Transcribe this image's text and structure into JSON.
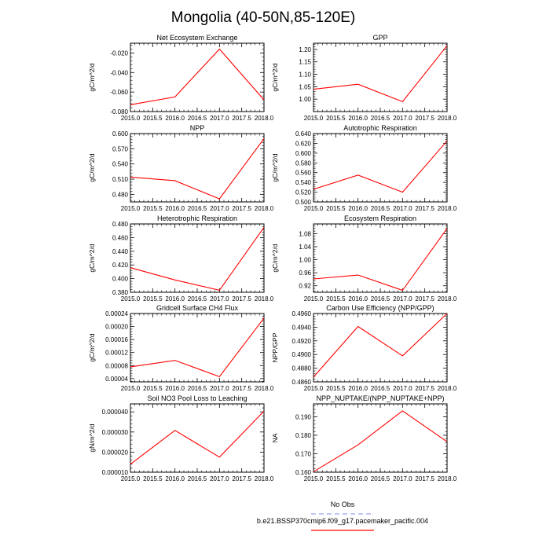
{
  "figure_title": "Mongolia (40-50N,85-120E)",
  "legend": {
    "obs_label": "No Obs",
    "obs_color": "#9aa0ee",
    "case_label": "b.e21.BSSP370cmip6.f09_g17.pacemaker_pacific.004",
    "case_color": "#ff0000"
  },
  "line_color": "#ff0000",
  "chart_data": [
    {
      "type": "line",
      "title": "Net Ecosystem Exchange",
      "xlabel": "",
      "ylabel": "gC/m^2/d",
      "x": [
        2015.0,
        2016.0,
        2017.0,
        2018.0
      ],
      "y": [
        -0.073,
        -0.065,
        -0.016,
        -0.068
      ],
      "xlim": [
        2015.0,
        2018.0
      ],
      "ylim": [
        -0.08,
        -0.01
      ],
      "xticks": [
        "2015.0",
        "2015.5",
        "2016.0",
        "2016.5",
        "2017.0",
        "2017.5",
        "2018.0"
      ],
      "yticks": [
        -0.08,
        -0.06,
        -0.04,
        -0.02
      ],
      "ytick_labels": [
        "-0.080",
        "-0.060",
        "-0.040",
        "-0.020"
      ]
    },
    {
      "type": "line",
      "title": "GPP",
      "xlabel": "",
      "ylabel": "gC/m^2/d",
      "x": [
        2015.0,
        2016.0,
        2017.0,
        2018.0
      ],
      "y": [
        1.04,
        1.06,
        0.99,
        1.215
      ],
      "xlim": [
        2015.0,
        2018.0
      ],
      "ylim": [
        0.95,
        1.225
      ],
      "xticks": [
        "2015.0",
        "2015.5",
        "2016.0",
        "2016.5",
        "2017.0",
        "2017.5",
        "2018.0"
      ],
      "yticks": [
        1.0,
        1.05,
        1.1,
        1.15,
        1.2
      ],
      "ytick_labels": [
        "1.00",
        "1.05",
        "1.10",
        "1.15",
        "1.20"
      ]
    },
    {
      "type": "line",
      "title": "NPP",
      "xlabel": "",
      "ylabel": "gC/m^2/d",
      "x": [
        2015.0,
        2016.0,
        2017.0,
        2018.0
      ],
      "y": [
        0.514,
        0.507,
        0.471,
        0.59
      ],
      "xlim": [
        2015.0,
        2018.0
      ],
      "ylim": [
        0.465,
        0.6
      ],
      "xticks": [
        "2015.0",
        "2015.5",
        "2016.0",
        "2016.5",
        "2017.0",
        "2017.5",
        "2018.0"
      ],
      "yticks": [
        0.48,
        0.51,
        0.54,
        0.57,
        0.6
      ],
      "ytick_labels": [
        "0.480",
        "0.510",
        "0.540",
        "0.570",
        "0.600"
      ]
    },
    {
      "type": "line",
      "title": "Autotrophic Respiration",
      "xlabel": "",
      "ylabel": "gC/m^2/d",
      "x": [
        2015.0,
        2016.0,
        2017.0,
        2018.0
      ],
      "y": [
        0.526,
        0.555,
        0.52,
        0.625
      ],
      "xlim": [
        2015.0,
        2018.0
      ],
      "ylim": [
        0.5,
        0.64
      ],
      "xticks": [
        "2015.0",
        "2015.5",
        "2016.0",
        "2016.5",
        "2017.0",
        "2017.5",
        "2018.0"
      ],
      "yticks": [
        0.5,
        0.52,
        0.54,
        0.56,
        0.58,
        0.6,
        0.62,
        0.64
      ],
      "ytick_labels": [
        "0.500",
        "0.520",
        "0.540",
        "0.560",
        "0.580",
        "0.600",
        "0.620",
        "0.640"
      ]
    },
    {
      "type": "line",
      "title": "Heterotrophic Respiration",
      "xlabel": "",
      "ylabel": "gC/m^2/d",
      "x": [
        2015.0,
        2016.0,
        2017.0,
        2018.0
      ],
      "y": [
        0.416,
        0.398,
        0.383,
        0.475
      ],
      "xlim": [
        2015.0,
        2018.0
      ],
      "ylim": [
        0.38,
        0.48
      ],
      "xticks": [
        "2015.0",
        "2015.5",
        "2016.0",
        "2016.5",
        "2017.0",
        "2017.5",
        "2018.0"
      ],
      "yticks": [
        0.38,
        0.4,
        0.42,
        0.44,
        0.46,
        0.48
      ],
      "ytick_labels": [
        "0.380",
        "0.400",
        "0.420",
        "0.440",
        "0.460",
        "0.480"
      ]
    },
    {
      "type": "line",
      "title": "Ecosystem Respiration",
      "xlabel": "",
      "ylabel": "gC/m^2/d",
      "x": [
        2015.0,
        2016.0,
        2017.0,
        2018.0
      ],
      "y": [
        0.941,
        0.953,
        0.906,
        1.096
      ],
      "xlim": [
        2015.0,
        2018.0
      ],
      "ylim": [
        0.9,
        1.11
      ],
      "xticks": [
        "2015.0",
        "2015.5",
        "2016.0",
        "2016.5",
        "2017.0",
        "2017.5",
        "2018.0"
      ],
      "yticks": [
        0.92,
        0.96,
        1.0,
        1.04,
        1.08
      ],
      "ytick_labels": [
        "0.92",
        "0.96",
        "1.00",
        "1.04",
        "1.08"
      ]
    },
    {
      "type": "line",
      "title": "Gridcell Surface CH4 Flux",
      "xlabel": "",
      "ylabel": "gC/m^2/d",
      "x": [
        2015.0,
        2016.0,
        2017.0,
        2018.0
      ],
      "y": [
        7.6e-05,
        9.6e-05,
        4.6e-05,
        0.000226
      ],
      "xlim": [
        2015.0,
        2018.0
      ],
      "ylim": [
        3e-05,
        0.00024
      ],
      "xticks": [
        "2015.0",
        "2015.5",
        "2016.0",
        "2016.5",
        "2017.0",
        "2017.5",
        "2018.0"
      ],
      "yticks": [
        4e-05,
        8e-05,
        0.00012,
        0.00016,
        0.0002,
        0.00024
      ],
      "ytick_labels": [
        "0.00004",
        "0.00008",
        "0.00012",
        "0.00016",
        "0.00020",
        "0.00024"
      ]
    },
    {
      "type": "line",
      "title": "Carbon Use Efficiency (NPP/GPP)",
      "xlabel": "",
      "ylabel": "NPP/GPP",
      "x": [
        2015.0,
        2016.0,
        2017.0,
        2018.0
      ],
      "y": [
        0.4867,
        0.4941,
        0.4898,
        0.496
      ],
      "xlim": [
        2015.0,
        2018.0
      ],
      "ylim": [
        0.486,
        0.496
      ],
      "xticks": [
        "2015.0",
        "2015.5",
        "2016.0",
        "2016.5",
        "2017.0",
        "2017.5",
        "2018.0"
      ],
      "yticks": [
        0.486,
        0.488,
        0.49,
        0.492,
        0.494,
        0.496
      ],
      "ytick_labels": [
        "0.4860",
        "0.4880",
        "0.4900",
        "0.4920",
        "0.4940",
        "0.4960"
      ]
    },
    {
      "type": "line",
      "title": "Soil NO3 Pool Loss to Leaching",
      "xlabel": "",
      "ylabel": "gN/m^2/d",
      "x": [
        2015.0,
        2016.0,
        2017.0,
        2018.0
      ],
      "y": [
        1.4e-05,
        3.08e-05,
        1.75e-05,
        4.04e-05
      ],
      "xlim": [
        2015.0,
        2018.0
      ],
      "ylim": [
        1e-05,
        4.4e-05
      ],
      "xticks": [
        "2015.0",
        "2015.5",
        "2016.0",
        "2016.5",
        "2017.0",
        "2017.5",
        "2018.0"
      ],
      "yticks": [
        1e-05,
        2e-05,
        3e-05,
        4e-05
      ],
      "ytick_labels": [
        "0.000010",
        "0.000020",
        "0.000030",
        "0.000040"
      ]
    },
    {
      "type": "line",
      "title": "NPP_NUPTAKE/(NPP_NUPTAKE+NPP)",
      "xlabel": "",
      "ylabel": "NA",
      "x": [
        2015.0,
        2016.0,
        2017.0,
        2018.0
      ],
      "y": [
        0.1603,
        0.1748,
        0.1932,
        0.1765
      ],
      "xlim": [
        2015.0,
        2018.0
      ],
      "ylim": [
        0.16,
        0.197
      ],
      "xticks": [
        "2015.0",
        "2015.5",
        "2016.0",
        "2016.5",
        "2017.0",
        "2017.5",
        "2018.0"
      ],
      "yticks": [
        0.16,
        0.17,
        0.18,
        0.19
      ],
      "ytick_labels": [
        "0.160",
        "0.170",
        "0.180",
        "0.190"
      ]
    }
  ]
}
